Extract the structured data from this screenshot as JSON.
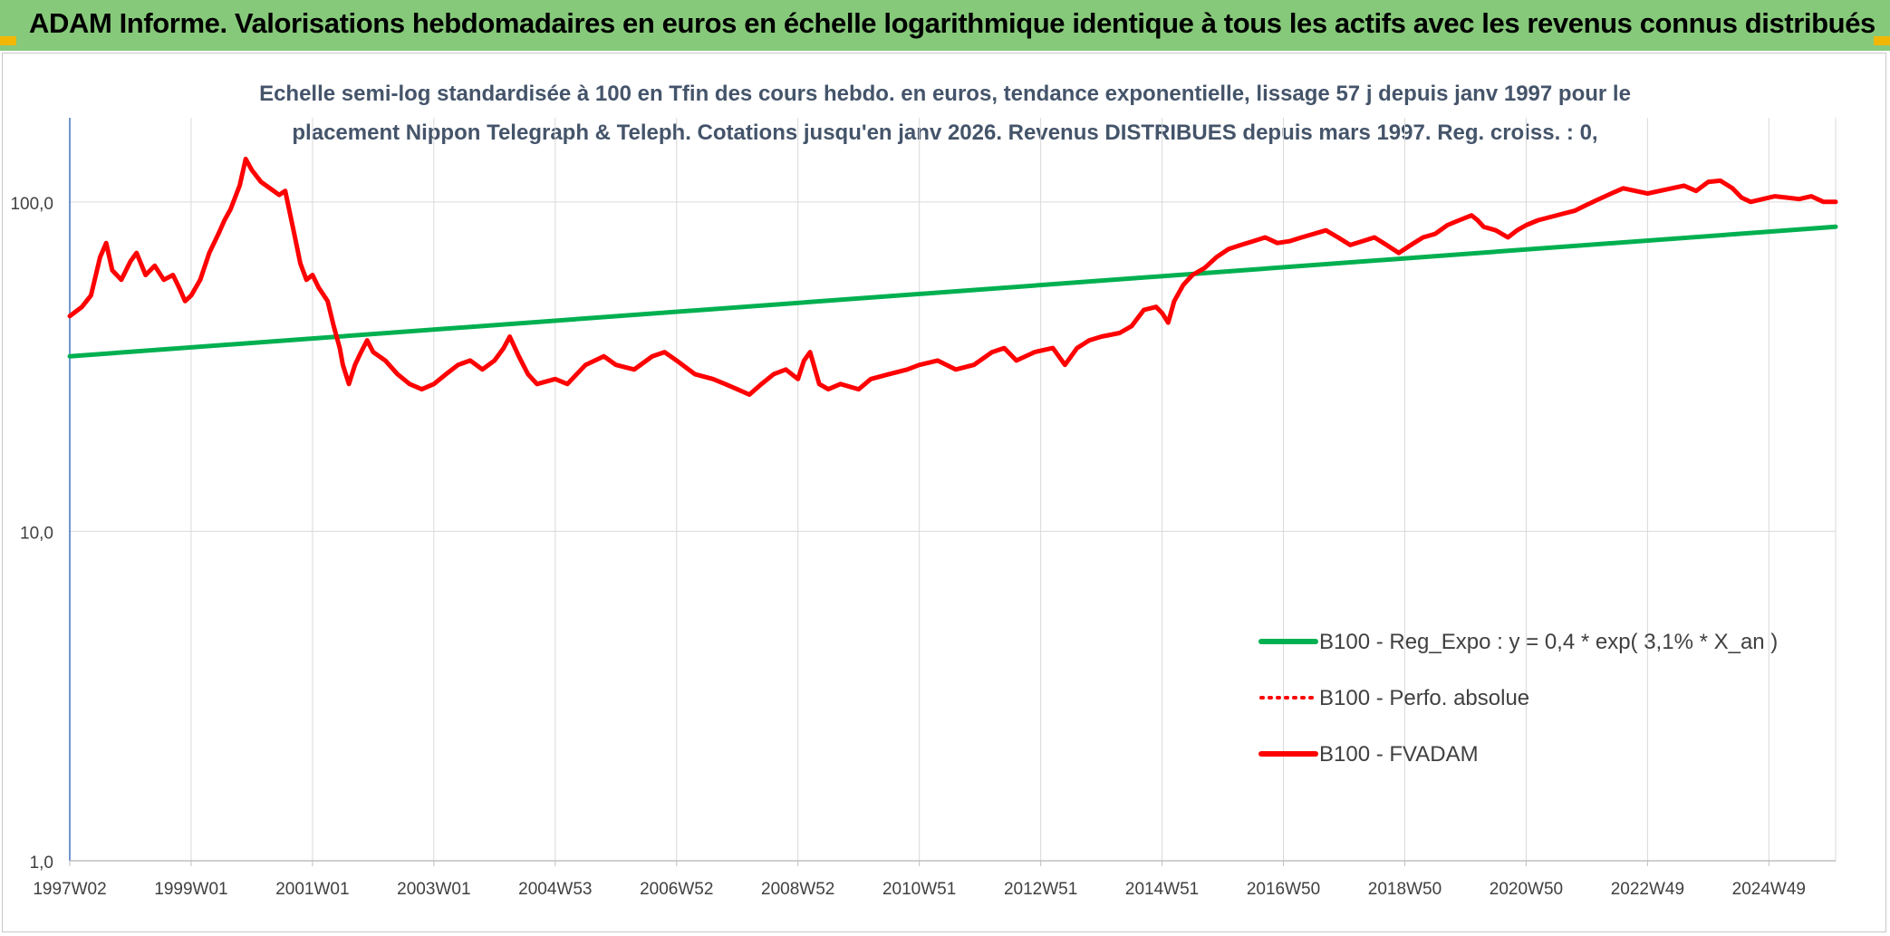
{
  "banner": {
    "title": "ADAM Informe. Valorisations hebdomadaires en euros en échelle logarithmique identique à tous les actifs avec les revenus connus distribués"
  },
  "colors": {
    "banner_bg": "#86C97A",
    "corner_accent": "#F2B705",
    "green_series": "#00B050",
    "red_series": "#FF0000",
    "subtitle_text": "#44546A",
    "grid": "#D9D9D9"
  },
  "chart_data": {
    "type": "line",
    "subtitle_line1": "Echelle semi-log standardisée à 100 en Tfin des cours hebdo. en euros, tendance exponentielle, lissage 57 j depuis janv 1997 pour le",
    "subtitle_line2": "placement Nippon Telegraph & Teleph. Cotations jusqu'en janv 2026. Revenus DISTRIBUES depuis mars 1997. Reg. croiss. : 0,",
    "y_scale": "log",
    "ylim": [
      1,
      180
    ],
    "y_ticks": [
      1,
      10,
      100
    ],
    "y_tick_labels": [
      "1,0",
      "10,0",
      "100,0"
    ],
    "xlim": [
      1997.0,
      2026.1
    ],
    "x_tick_labels": [
      "1997W02",
      "1999W01",
      "2001W01",
      "2003W01",
      "2004W53",
      "2006W52",
      "2008W52",
      "2010W51",
      "2012W51",
      "2014W51",
      "2016W50",
      "2018W50",
      "2020W50",
      "2022W49",
      "2024W49"
    ],
    "x_tick_values": [
      1997.0,
      1999.0,
      2001.0,
      2003.0,
      2005.0,
      2007.0,
      2009.0,
      2011.0,
      2013.0,
      2015.0,
      2017.0,
      2019.0,
      2021.0,
      2023.0,
      2025.0
    ],
    "vertical_grid": true,
    "horizontal_grid": true,
    "legend_position": "bottom-right",
    "series": [
      {
        "name": "B100 - Reg_Expo : y = 0,4 * exp( 3,1% *  X_an )",
        "color": "#00B050",
        "style": "solid",
        "points": [
          [
            1997.0,
            34
          ],
          [
            2026.1,
            84
          ]
        ]
      },
      {
        "name": "B100 - Perfo. absolue",
        "color": "#FF0000",
        "style": "dotted",
        "points": []
      },
      {
        "name": "B100 - FVADAM",
        "color": "#FF0000",
        "style": "solid",
        "points": [
          [
            1997.0,
            45
          ],
          [
            1997.2,
            48
          ],
          [
            1997.35,
            52
          ],
          [
            1997.5,
            68
          ],
          [
            1997.6,
            75
          ],
          [
            1997.7,
            62
          ],
          [
            1997.85,
            58
          ],
          [
            1998.0,
            66
          ],
          [
            1998.1,
            70
          ],
          [
            1998.25,
            60
          ],
          [
            1998.4,
            64
          ],
          [
            1998.55,
            58
          ],
          [
            1998.7,
            60
          ],
          [
            1998.8,
            55
          ],
          [
            1998.9,
            50
          ],
          [
            1999.0,
            52
          ],
          [
            1999.15,
            58
          ],
          [
            1999.3,
            70
          ],
          [
            1999.45,
            80
          ],
          [
            1999.55,
            88
          ],
          [
            1999.65,
            95
          ],
          [
            1999.8,
            112
          ],
          [
            1999.9,
            135
          ],
          [
            2000.0,
            125
          ],
          [
            2000.15,
            115
          ],
          [
            2000.3,
            110
          ],
          [
            2000.45,
            105
          ],
          [
            2000.55,
            108
          ],
          [
            2000.7,
            80
          ],
          [
            2000.8,
            65
          ],
          [
            2000.9,
            58
          ],
          [
            2001.0,
            60
          ],
          [
            2001.1,
            55
          ],
          [
            2001.25,
            50
          ],
          [
            2001.35,
            42
          ],
          [
            2001.45,
            36
          ],
          [
            2001.5,
            32
          ],
          [
            2001.6,
            28
          ],
          [
            2001.7,
            32
          ],
          [
            2001.8,
            35
          ],
          [
            2001.9,
            38
          ],
          [
            2002.0,
            35
          ],
          [
            2002.2,
            33
          ],
          [
            2002.4,
            30
          ],
          [
            2002.6,
            28
          ],
          [
            2002.8,
            27
          ],
          [
            2003.0,
            28
          ],
          [
            2003.2,
            30
          ],
          [
            2003.4,
            32
          ],
          [
            2003.6,
            33
          ],
          [
            2003.8,
            31
          ],
          [
            2004.0,
            33
          ],
          [
            2004.15,
            36
          ],
          [
            2004.25,
            39
          ],
          [
            2004.4,
            34
          ],
          [
            2004.55,
            30
          ],
          [
            2004.7,
            28
          ],
          [
            2005.0,
            29
          ],
          [
            2005.2,
            28
          ],
          [
            2005.5,
            32
          ],
          [
            2005.8,
            34
          ],
          [
            2006.0,
            32
          ],
          [
            2006.3,
            31
          ],
          [
            2006.6,
            34
          ],
          [
            2006.8,
            35
          ],
          [
            2007.0,
            33
          ],
          [
            2007.3,
            30
          ],
          [
            2007.6,
            29
          ],
          [
            2007.8,
            28
          ],
          [
            2008.0,
            27
          ],
          [
            2008.2,
            26
          ],
          [
            2008.4,
            28
          ],
          [
            2008.6,
            30
          ],
          [
            2008.8,
            31
          ],
          [
            2009.0,
            29
          ],
          [
            2009.1,
            33
          ],
          [
            2009.2,
            35
          ],
          [
            2009.35,
            28
          ],
          [
            2009.5,
            27
          ],
          [
            2009.7,
            28
          ],
          [
            2010.0,
            27
          ],
          [
            2010.2,
            29
          ],
          [
            2010.5,
            30
          ],
          [
            2010.8,
            31
          ],
          [
            2011.0,
            32
          ],
          [
            2011.3,
            33
          ],
          [
            2011.6,
            31
          ],
          [
            2011.9,
            32
          ],
          [
            2012.2,
            35
          ],
          [
            2012.4,
            36
          ],
          [
            2012.6,
            33
          ],
          [
            2012.9,
            35
          ],
          [
            2013.2,
            36
          ],
          [
            2013.4,
            32
          ],
          [
            2013.6,
            36
          ],
          [
            2013.8,
            38
          ],
          [
            2014.0,
            39
          ],
          [
            2014.3,
            40
          ],
          [
            2014.5,
            42
          ],
          [
            2014.7,
            47
          ],
          [
            2014.9,
            48
          ],
          [
            2015.0,
            46
          ],
          [
            2015.1,
            43
          ],
          [
            2015.2,
            50
          ],
          [
            2015.35,
            56
          ],
          [
            2015.5,
            60
          ],
          [
            2015.7,
            63
          ],
          [
            2015.9,
            68
          ],
          [
            2016.1,
            72
          ],
          [
            2016.3,
            74
          ],
          [
            2016.5,
            76
          ],
          [
            2016.7,
            78
          ],
          [
            2016.9,
            75
          ],
          [
            2017.1,
            76
          ],
          [
            2017.3,
            78
          ],
          [
            2017.5,
            80
          ],
          [
            2017.7,
            82
          ],
          [
            2017.9,
            78
          ],
          [
            2018.1,
            74
          ],
          [
            2018.3,
            76
          ],
          [
            2018.5,
            78
          ],
          [
            2018.7,
            74
          ],
          [
            2018.9,
            70
          ],
          [
            2019.1,
            74
          ],
          [
            2019.3,
            78
          ],
          [
            2019.5,
            80
          ],
          [
            2019.7,
            85
          ],
          [
            2019.9,
            88
          ],
          [
            2020.1,
            91
          ],
          [
            2020.2,
            88
          ],
          [
            2020.3,
            84
          ],
          [
            2020.5,
            82
          ],
          [
            2020.7,
            78
          ],
          [
            2020.85,
            82
          ],
          [
            2021.0,
            85
          ],
          [
            2021.2,
            88
          ],
          [
            2021.4,
            90
          ],
          [
            2021.6,
            92
          ],
          [
            2021.8,
            94
          ],
          [
            2022.0,
            98
          ],
          [
            2022.2,
            102
          ],
          [
            2022.4,
            106
          ],
          [
            2022.6,
            110
          ],
          [
            2022.8,
            108
          ],
          [
            2023.0,
            106
          ],
          [
            2023.2,
            108
          ],
          [
            2023.4,
            110
          ],
          [
            2023.6,
            112
          ],
          [
            2023.8,
            108
          ],
          [
            2024.0,
            115
          ],
          [
            2024.2,
            116
          ],
          [
            2024.4,
            110
          ],
          [
            2024.55,
            103
          ],
          [
            2024.7,
            100
          ],
          [
            2024.9,
            102
          ],
          [
            2025.1,
            104
          ],
          [
            2025.3,
            103
          ],
          [
            2025.5,
            102
          ],
          [
            2025.7,
            104
          ],
          [
            2025.9,
            100
          ],
          [
            2026.1,
            100
          ]
        ]
      }
    ]
  }
}
